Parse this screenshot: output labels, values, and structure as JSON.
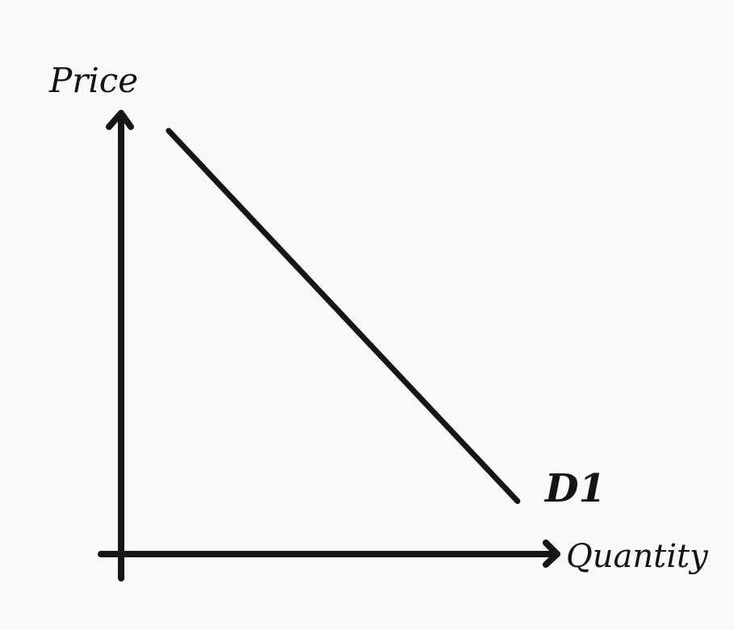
{
  "chart_data": {
    "type": "line",
    "title": "",
    "xlabel": "Quantity",
    "ylabel": "Price",
    "grid": false,
    "legend": "none",
    "series": [
      {
        "name": "D1",
        "points": [
          {
            "x": 0.12,
            "y": 0.96
          },
          {
            "x": 1.0,
            "y": 0.12
          }
        ]
      }
    ],
    "xlim": [
      0,
      1.1
    ],
    "ylim": [
      0,
      1.0
    ],
    "colors": {
      "background": "#f8f9fb",
      "ink": "#161616"
    }
  }
}
